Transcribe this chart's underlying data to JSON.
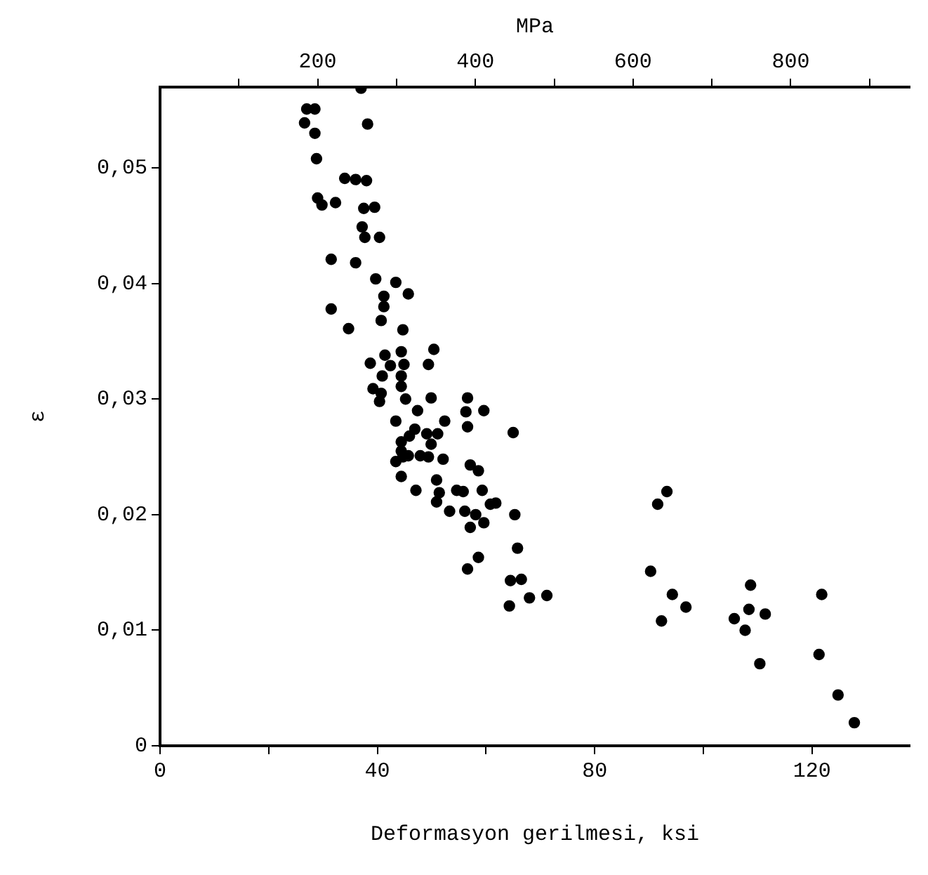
{
  "chart_data": {
    "type": "scatter",
    "xlabel": "Deformasyon gerilmesi, ksi",
    "ylabel": "ε",
    "x2label": "MPa",
    "xlim": [
      0,
      138
    ],
    "xticks": [
      0,
      {
        "value": 20,
        "label": null
      },
      40,
      {
        "value": 60,
        "label": null
      },
      80,
      {
        "value": 100,
        "label": null
      },
      120
    ],
    "x2lim": [
      0,
      951
    ],
    "x2ticks": [
      {
        "value": 100,
        "label": null
      },
      200,
      {
        "value": 300,
        "label": null
      },
      400,
      {
        "value": 500,
        "label": null
      },
      600,
      {
        "value": 700,
        "label": null
      },
      800,
      {
        "value": 900,
        "label": null
      }
    ],
    "ylim": [
      0,
      0.057
    ],
    "yticks": [
      0,
      {
        "value": 0.01,
        "label": "0,01"
      },
      {
        "value": 0.02,
        "label": "0,02"
      },
      {
        "value": 0.03,
        "label": "0,03"
      },
      {
        "value": 0.04,
        "label": "0,04"
      },
      {
        "value": 0.05,
        "label": "0,05"
      }
    ],
    "grid": false,
    "legend": false,
    "marker": "circle",
    "series": [
      {
        "color": "#000000",
        "x": [
          27.0,
          28.5,
          26.6,
          28.5,
          28.8,
          38.2,
          37.0,
          34.0,
          36.0,
          38.0,
          29.0,
          29.8,
          32.3,
          37.5,
          39.5,
          37.2,
          37.7,
          40.4,
          31.5,
          36.0,
          39.7,
          43.4,
          45.7,
          41.2,
          41.2,
          31.5,
          34.7,
          40.7,
          44.7,
          50.4,
          41.4,
          44.4,
          38.7,
          42.4,
          44.9,
          49.4,
          40.9,
          44.4,
          44.4,
          39.2,
          40.7,
          40.4,
          45.2,
          49.9,
          56.6,
          47.4,
          56.3,
          59.6,
          56.6,
          43.4,
          52.4,
          46.9,
          49.1,
          51.1,
          44.4,
          45.9,
          49.9,
          44.4,
          44.7,
          43.4,
          45.7,
          47.9,
          49.4,
          52.1,
          65.0,
          44.4,
          50.9,
          57.1,
          58.6,
          47.1,
          51.4,
          50.9,
          54.6,
          55.8,
          59.3,
          53.3,
          56.1,
          58.1,
          59.6,
          57.1,
          60.8,
          61.8,
          65.3,
          65.8,
          58.6,
          56.6,
          64.5,
          66.5,
          64.3,
          68.0,
          71.2,
          93.3,
          91.6,
          90.3,
          94.3,
          96.8,
          92.3,
          108.7,
          108.4,
          111.4,
          105.7,
          107.7,
          110.4,
          121.8,
          121.3,
          124.8,
          127.8
        ],
        "values": [
          0.0551,
          0.0551,
          0.0539,
          0.053,
          0.0508,
          0.0538,
          0.0569,
          0.0491,
          0.049,
          0.0489,
          0.0474,
          0.0468,
          0.047,
          0.0465,
          0.0466,
          0.0449,
          0.044,
          0.044,
          0.0421,
          0.0418,
          0.0404,
          0.0401,
          0.0391,
          0.0389,
          0.038,
          0.0378,
          0.0361,
          0.0368,
          0.036,
          0.0343,
          0.0338,
          0.0341,
          0.0331,
          0.0329,
          0.033,
          0.033,
          0.032,
          0.032,
          0.0311,
          0.0309,
          0.0305,
          0.0298,
          0.03,
          0.0301,
          0.0301,
          0.029,
          0.0289,
          0.029,
          0.0276,
          0.0281,
          0.0281,
          0.0274,
          0.027,
          0.027,
          0.0263,
          0.0268,
          0.0261,
          0.0255,
          0.025,
          0.0246,
          0.0251,
          0.0251,
          0.025,
          0.0248,
          0.0271,
          0.0233,
          0.023,
          0.0243,
          0.0238,
          0.0221,
          0.0219,
          0.0211,
          0.0221,
          0.022,
          0.0221,
          0.0203,
          0.0203,
          0.02,
          0.0193,
          0.0189,
          0.0209,
          0.021,
          0.02,
          0.0171,
          0.0163,
          0.0153,
          0.0143,
          0.0144,
          0.0121,
          0.0128,
          0.013,
          0.022,
          0.0209,
          0.0151,
          0.0131,
          0.012,
          0.0108,
          0.0139,
          0.0118,
          0.0114,
          0.011,
          0.01,
          0.0071,
          0.0131,
          0.0079,
          0.0044,
          0.002
        ]
      }
    ]
  }
}
